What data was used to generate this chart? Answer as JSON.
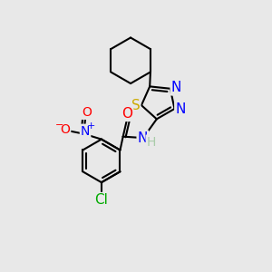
{
  "background_color": "#e8e8e8",
  "bond_color": "#000000",
  "bond_width": 1.5,
  "atom_colors": {
    "N": "#0000FF",
    "O": "#FF0000",
    "S": "#CCAA00",
    "Cl": "#00AA00",
    "H": "#aaccaa",
    "C": "#000000"
  },
  "font_size_atom": 10,
  "title": ""
}
